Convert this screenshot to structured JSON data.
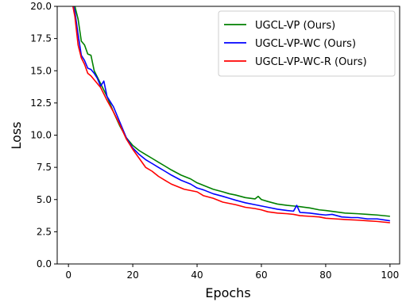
{
  "chart_data": {
    "type": "line",
    "title": "",
    "xlabel": "Epochs",
    "ylabel": "Loss",
    "xlim": [
      -3.5,
      103
    ],
    "ylim": [
      0.0,
      20.0
    ],
    "xticks": [
      0,
      20,
      40,
      60,
      80,
      100
    ],
    "xtick_labels": [
      "0",
      "20",
      "40",
      "60",
      "80",
      "100"
    ],
    "yticks": [
      0.0,
      2.5,
      5.0,
      7.5,
      10.0,
      12.5,
      15.0,
      17.5,
      20.0
    ],
    "ytick_labels": [
      "0.0",
      "2.5",
      "5.0",
      "7.5",
      "10.0",
      "12.5",
      "15.0",
      "17.5",
      "20.0"
    ],
    "grid": false,
    "legend_position": "top-right",
    "series": [
      {
        "name": "UGCL-VP (Ours)",
        "color": "#008000",
        "x": [
          1,
          2,
          3,
          4,
          5,
          6,
          7,
          8,
          10,
          12,
          14,
          16,
          18,
          20,
          22,
          24,
          26,
          28,
          30,
          32,
          35,
          38,
          40,
          42,
          45,
          48,
          50,
          52,
          55,
          58,
          59,
          60,
          62,
          65,
          68,
          70,
          72,
          75,
          78,
          80,
          83,
          86,
          90,
          93,
          96,
          100
        ],
        "y": [
          20.5,
          20.0,
          19.0,
          17.3,
          17.0,
          16.3,
          16.2,
          15.0,
          14.0,
          13.0,
          11.8,
          10.7,
          9.8,
          9.2,
          8.8,
          8.5,
          8.2,
          7.9,
          7.6,
          7.3,
          6.9,
          6.6,
          6.3,
          6.1,
          5.8,
          5.6,
          5.45,
          5.35,
          5.15,
          5.05,
          5.25,
          5.0,
          4.85,
          4.65,
          4.55,
          4.5,
          4.45,
          4.35,
          4.2,
          4.15,
          4.05,
          3.95,
          3.9,
          3.85,
          3.8,
          3.7
        ]
      },
      {
        "name": "UGCL-VP-WC (Ours)",
        "color": "#0000ff",
        "x": [
          1,
          2,
          3,
          4,
          5,
          6,
          7,
          8,
          9,
          10,
          11,
          12,
          14,
          16,
          18,
          20,
          22,
          24,
          26,
          28,
          30,
          32,
          35,
          38,
          40,
          42,
          45,
          48,
          50,
          52,
          55,
          58,
          60,
          62,
          65,
          68,
          70,
          71,
          72,
          75,
          78,
          80,
          82,
          85,
          88,
          90,
          93,
          96,
          100
        ],
        "y": [
          20.5,
          19.6,
          17.8,
          16.2,
          15.8,
          15.2,
          15.1,
          14.8,
          14.4,
          13.8,
          14.2,
          13.0,
          12.2,
          11.0,
          9.8,
          9.0,
          8.5,
          8.1,
          7.8,
          7.5,
          7.2,
          6.9,
          6.5,
          6.2,
          5.9,
          5.75,
          5.45,
          5.25,
          5.1,
          4.95,
          4.75,
          4.6,
          4.5,
          4.4,
          4.25,
          4.15,
          4.1,
          4.55,
          4.0,
          3.95,
          3.85,
          3.8,
          3.85,
          3.65,
          3.6,
          3.6,
          3.5,
          3.5,
          3.35
        ]
      },
      {
        "name": "UGCL-VP-WC-R (Ours)",
        "color": "#ff0000",
        "x": [
          1,
          2,
          3,
          4,
          5,
          6,
          7,
          8,
          10,
          12,
          14,
          16,
          18,
          20,
          22,
          24,
          26,
          28,
          30,
          32,
          34,
          36,
          38,
          40,
          42,
          45,
          48,
          50,
          52,
          55,
          58,
          60,
          62,
          65,
          68,
          70,
          72,
          75,
          78,
          80,
          83,
          86,
          90,
          93,
          96,
          100
        ],
        "y": [
          20.5,
          19.2,
          17.0,
          16.0,
          15.5,
          14.8,
          14.6,
          14.3,
          13.7,
          12.7,
          11.8,
          10.8,
          9.7,
          8.9,
          8.2,
          7.5,
          7.2,
          6.8,
          6.5,
          6.2,
          6.0,
          5.8,
          5.7,
          5.6,
          5.3,
          5.1,
          4.8,
          4.7,
          4.6,
          4.4,
          4.3,
          4.2,
          4.05,
          3.95,
          3.9,
          3.85,
          3.75,
          3.7,
          3.65,
          3.55,
          3.5,
          3.45,
          3.4,
          3.35,
          3.3,
          3.2
        ]
      }
    ]
  }
}
